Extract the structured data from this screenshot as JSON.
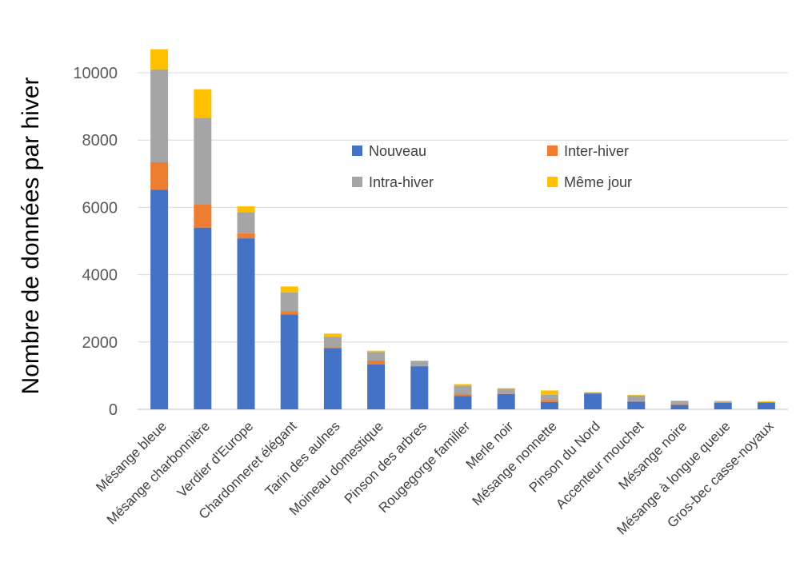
{
  "chart_data": {
    "type": "bar",
    "stacked": true,
    "title": "",
    "xlabel": "",
    "ylabel": "Nombre de données par hiver",
    "ylim": [
      0,
      10000
    ],
    "yticks": [
      0,
      2000,
      4000,
      6000,
      8000,
      10000
    ],
    "grid": true,
    "legend_position": "center-right",
    "categories": [
      "Mésange bleue",
      "Mésange charbonnière",
      "Verdier d'Europe",
      "Chardonneret élégant",
      "Tarin des aulnes",
      "Moineau domestique",
      "Pinson des arbres",
      "Rougegorge familier",
      "Merle noir",
      "Mésange nonnette",
      "Pinson du Nord",
      "Accenteur mouchet",
      "Mésange noire",
      "Mésange à longue queue",
      "Gros-bec casse-noyaux"
    ],
    "series": [
      {
        "name": "Nouveau",
        "color": "#4472c4",
        "values": [
          6520,
          5400,
          5080,
          2820,
          1820,
          1330,
          1280,
          400,
          460,
          220,
          470,
          230,
          130,
          190,
          200
        ]
      },
      {
        "name": "Inter-hiver",
        "color": "#ed7d31",
        "values": [
          820,
          700,
          150,
          90,
          20,
          120,
          20,
          50,
          10,
          60,
          0,
          10,
          20,
          0,
          0
        ]
      },
      {
        "name": "Intra-hiver",
        "color": "#a5a5a5",
        "values": [
          2760,
          2560,
          630,
          560,
          310,
          250,
          130,
          250,
          140,
          150,
          30,
          170,
          90,
          40,
          20
        ]
      },
      {
        "name": "Même jour",
        "color": "#ffc000",
        "values": [
          600,
          850,
          170,
          180,
          100,
          40,
          20,
          50,
          20,
          130,
          10,
          20,
          20,
          20,
          20
        ]
      }
    ]
  }
}
